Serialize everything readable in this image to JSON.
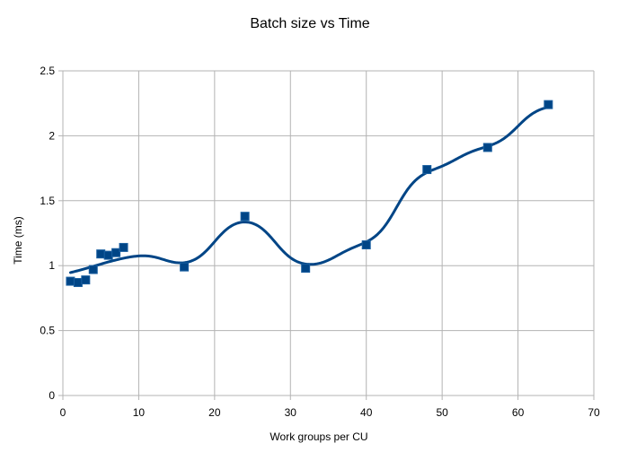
{
  "chart_data": {
    "type": "scatter",
    "title": "Batch size vs Time",
    "xlabel": "Work groups per CU",
    "ylabel": "Time (ms)",
    "xlim": [
      0,
      70
    ],
    "ylim": [
      0,
      2.5
    ],
    "x_ticks": [
      "0",
      "10",
      "20",
      "30",
      "40",
      "50",
      "60",
      "70"
    ],
    "y_ticks": [
      "0",
      "0.5",
      "1",
      "1.5",
      "2",
      "2.5"
    ],
    "grid": true,
    "legend": "none",
    "trendline": "smoothed spline",
    "series": [
      {
        "x": [
          1,
          2,
          3,
          4,
          5,
          6,
          7,
          8,
          16,
          24,
          32,
          40,
          48,
          56,
          64
        ],
        "y": [
          0.88,
          0.87,
          0.89,
          0.97,
          1.09,
          1.08,
          1.1,
          1.14,
          0.99,
          1.38,
          0.98,
          1.16,
          1.74,
          1.91,
          2.24
        ],
        "color": "#004586"
      }
    ]
  }
}
